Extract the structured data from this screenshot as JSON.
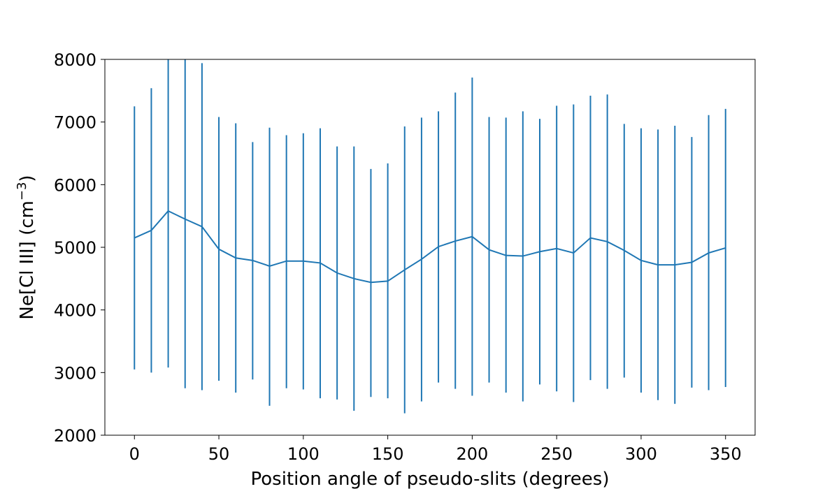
{
  "chart_data": {
    "type": "line",
    "title": "",
    "xlabel": "Position angle of pseudo-slits (degrees)",
    "ylabel_main": "Ne[Cl III] (cm",
    "ylabel_sup": "−3",
    "ylabel_close": ")",
    "xlim": [
      -17.5,
      367.5
    ],
    "ylim": [
      2000,
      8000
    ],
    "xticks": [
      0,
      50,
      100,
      150,
      200,
      250,
      300,
      350
    ],
    "yticks": [
      2000,
      3000,
      4000,
      5000,
      6000,
      7000,
      8000
    ],
    "grid": false,
    "color": "#1f77b4",
    "series": [
      {
        "x": [
          0,
          10,
          20,
          30,
          40,
          50,
          60,
          70,
          80,
          90,
          100,
          110,
          120,
          130,
          140,
          150,
          160,
          170,
          180,
          190,
          200,
          210,
          220,
          230,
          240,
          250,
          260,
          270,
          280,
          290,
          300,
          310,
          320,
          330,
          340,
          350
        ],
        "y": [
          5150,
          5270,
          5580,
          5450,
          5330,
          4970,
          4830,
          4790,
          4700,
          4780,
          4780,
          4750,
          4590,
          4500,
          4440,
          4460,
          4640,
          4810,
          5010,
          5100,
          5170,
          4960,
          4870,
          4860,
          4930,
          4980,
          4910,
          5150,
          5090,
          4950,
          4790,
          4720,
          4720,
          4760,
          4910,
          4990
        ],
        "err_low": [
          3050,
          3000,
          3080,
          2750,
          2720,
          2870,
          2680,
          2890,
          2470,
          2750,
          2730,
          2590,
          2570,
          2390,
          2610,
          2590,
          2350,
          2540,
          2840,
          2740,
          2630,
          2840,
          2680,
          2540,
          2810,
          2700,
          2530,
          2880,
          2740,
          2920,
          2680,
          2560,
          2500,
          2760,
          2720,
          2770
        ],
        "err_high": [
          7250,
          7540,
          8090,
          8150,
          7940,
          7080,
          6980,
          6680,
          6910,
          6790,
          6820,
          6900,
          6610,
          6610,
          6250,
          6340,
          6930,
          7070,
          7170,
          7470,
          7710,
          7080,
          7070,
          7170,
          7050,
          7260,
          7280,
          7420,
          7440,
          6970,
          6900,
          6880,
          6940,
          6760,
          7110,
          7210
        ]
      }
    ]
  }
}
